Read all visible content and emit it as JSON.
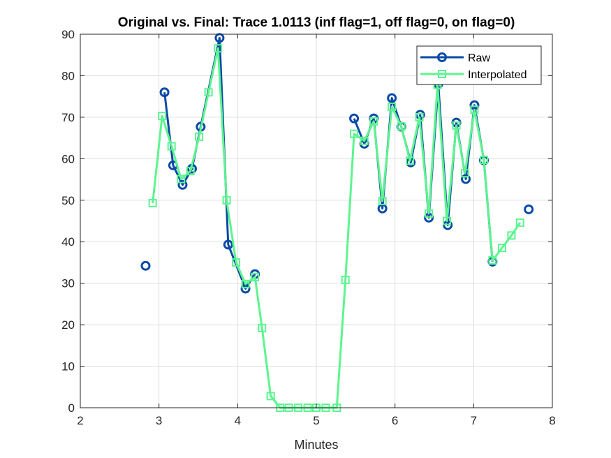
{
  "chart_data": {
    "type": "line",
    "title": "Original vs. Final: Trace 1.0113 (inf flag=1, off flag=0, on flag=0)",
    "xlabel": "Minutes",
    "ylabel": "",
    "xlim": [
      2,
      8
    ],
    "ylim": [
      0,
      90
    ],
    "xticks": [
      2,
      3,
      4,
      5,
      6,
      7,
      8
    ],
    "yticks": [
      0,
      10,
      20,
      30,
      40,
      50,
      60,
      70,
      80,
      90
    ],
    "grid": true,
    "legend_position": "top-right",
    "series": [
      {
        "name": "Raw",
        "color": "#0a4aa6",
        "marker": "circle",
        "points": [
          [
            2.83,
            34.2
          ],
          [
            3.07,
            76.0
          ],
          [
            3.18,
            58.4
          ],
          [
            3.3,
            53.7
          ],
          [
            3.42,
            57.6
          ],
          [
            3.53,
            67.7
          ],
          [
            3.77,
            89.1
          ],
          [
            3.88,
            39.3
          ],
          [
            4.1,
            28.7
          ],
          [
            4.22,
            32.2
          ],
          [
            5.48,
            69.7
          ],
          [
            5.61,
            63.6
          ],
          [
            5.73,
            69.7
          ],
          [
            5.84,
            48.0
          ],
          [
            5.96,
            74.6
          ],
          [
            6.08,
            67.7
          ],
          [
            6.2,
            59.1
          ],
          [
            6.32,
            70.6
          ],
          [
            6.43,
            45.8
          ],
          [
            6.55,
            78.0
          ],
          [
            6.67,
            44.0
          ],
          [
            6.78,
            68.7
          ],
          [
            6.9,
            55.1
          ],
          [
            7.01,
            72.9
          ],
          [
            7.13,
            59.6
          ],
          [
            7.24,
            35.2
          ],
          [
            7.7,
            47.8
          ]
        ],
        "segments": [
          [
            1,
            9
          ],
          [
            10,
            25
          ]
        ]
      },
      {
        "name": "Interpolated",
        "color": "#5cf58f",
        "marker": "square",
        "points": [
          [
            2.92,
            49.3
          ],
          [
            3.04,
            70.3
          ],
          [
            3.16,
            63.0
          ],
          [
            3.28,
            55.1
          ],
          [
            3.4,
            57.0
          ],
          [
            3.51,
            65.3
          ],
          [
            3.63,
            76.0
          ],
          [
            3.75,
            86.6
          ],
          [
            3.86,
            50.0
          ],
          [
            3.98,
            35.0
          ],
          [
            4.1,
            29.8
          ],
          [
            4.22,
            31.5
          ],
          [
            4.31,
            19.2
          ],
          [
            4.42,
            2.8
          ],
          [
            4.54,
            0.0
          ],
          [
            4.65,
            0.0
          ],
          [
            4.77,
            0.0
          ],
          [
            4.89,
            0.0
          ],
          [
            5.0,
            0.0
          ],
          [
            5.12,
            0.0
          ],
          [
            5.26,
            0.0
          ],
          [
            5.37,
            30.8
          ],
          [
            5.48,
            66.0
          ],
          [
            5.61,
            64.3
          ],
          [
            5.73,
            69.0
          ],
          [
            5.84,
            49.8
          ],
          [
            5.96,
            72.5
          ],
          [
            6.08,
            67.8
          ],
          [
            6.19,
            59.5
          ],
          [
            6.31,
            70.0
          ],
          [
            6.43,
            46.8
          ],
          [
            6.54,
            77.8
          ],
          [
            6.66,
            45.0
          ],
          [
            6.78,
            68.0
          ],
          [
            6.89,
            56.5
          ],
          [
            7.01,
            71.8
          ],
          [
            7.13,
            59.7
          ],
          [
            7.24,
            35.5
          ],
          [
            7.36,
            38.5
          ],
          [
            7.48,
            41.5
          ],
          [
            7.59,
            44.6
          ]
        ]
      }
    ]
  }
}
